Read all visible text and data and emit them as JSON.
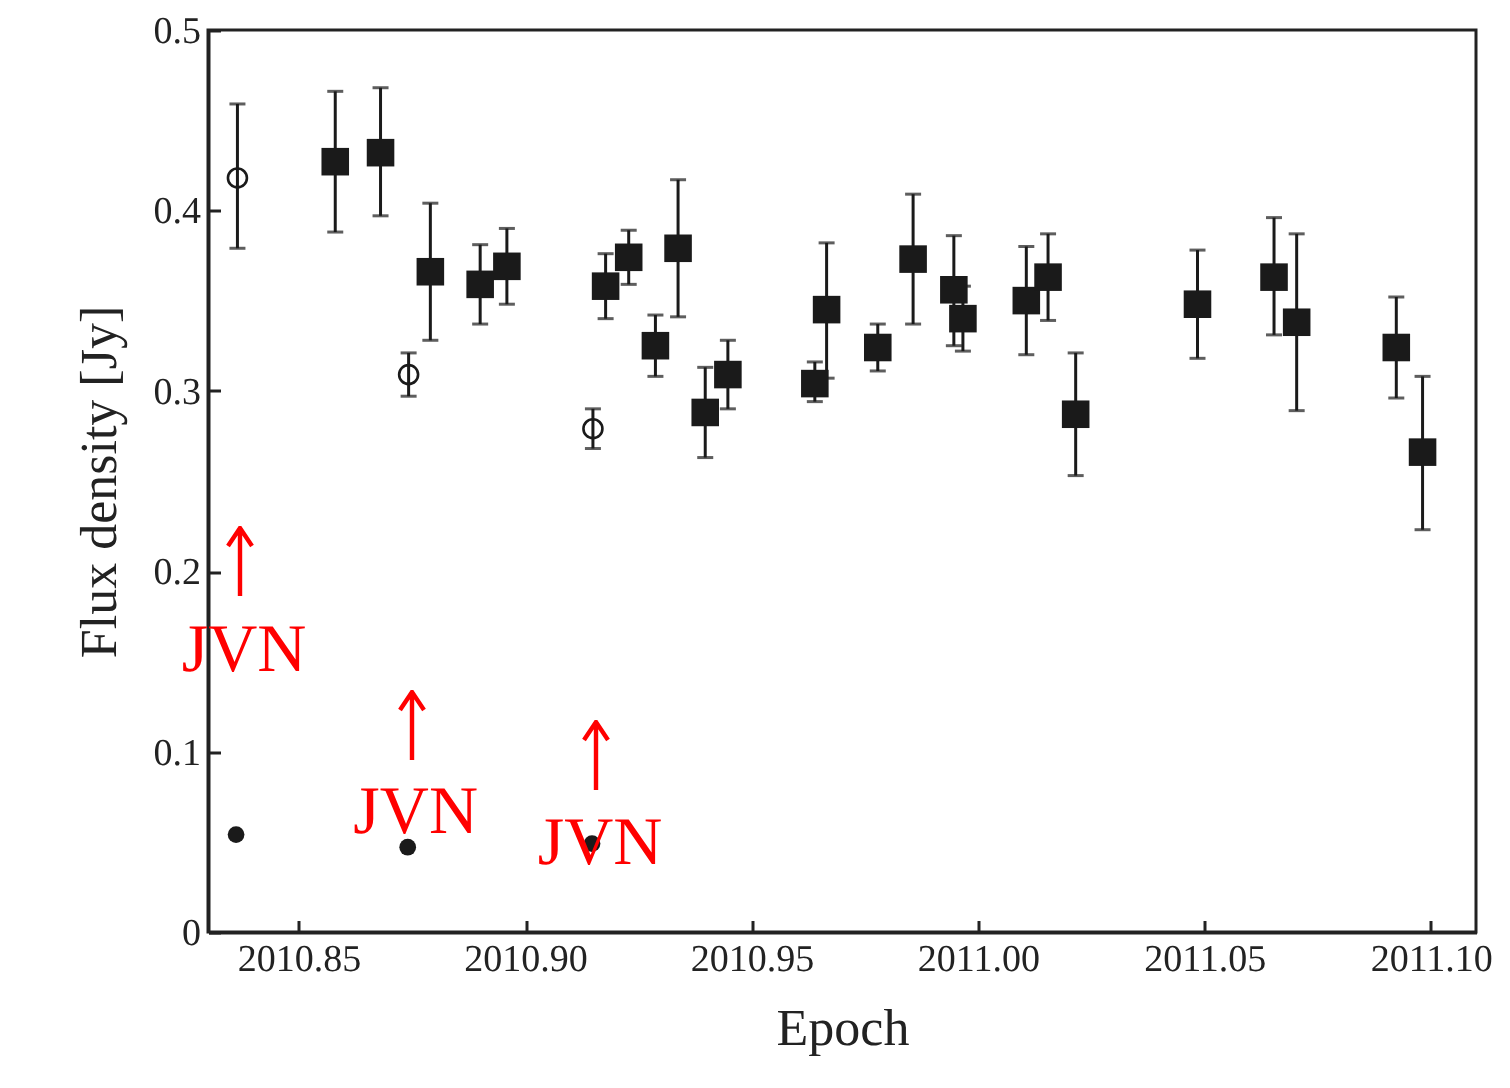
{
  "chart_data": {
    "type": "scatter",
    "xlabel": "Epoch",
    "ylabel": "Flux density [Jy]",
    "xlim": [
      2010.83,
      2011.11
    ],
    "ylim": [
      0,
      0.5
    ],
    "xticks": [
      {
        "value": 2010.85,
        "label": "2010.85"
      },
      {
        "value": 2010.9,
        "label": "2010.90"
      },
      {
        "value": 2010.95,
        "label": "2010.95"
      },
      {
        "value": 2011.0,
        "label": "2011.00"
      },
      {
        "value": 2011.05,
        "label": "2011.05"
      },
      {
        "value": 2011.1,
        "label": "2011.10"
      }
    ],
    "yticks": [
      0,
      0.1,
      0.2,
      0.3,
      0.4,
      0.5
    ],
    "series": [
      {
        "color": "#1a1a1a",
        "marker": "circle",
        "x": [
          2010.8365,
          2010.8743,
          2010.915
        ],
        "values": [
          0.418,
          0.309,
          0.279
        ],
        "errors": [
          [
            0.379,
            0.459
          ],
          [
            0.297,
            0.321
          ],
          [
            0.268,
            0.29
          ]
        ]
      },
      {
        "color": "#1a1a1a",
        "marker": "square",
        "x": [
          2010.8581,
          2010.8681,
          2010.8791,
          2010.8901,
          2010.896,
          2010.9178,
          2010.9229,
          2010.9288,
          2010.9338,
          2010.9398,
          2010.9448,
          2010.964,
          2010.9666,
          2010.9779,
          2010.9857,
          2010.9947,
          2010.9967,
          2011.0107,
          2011.0155,
          2011.0216,
          2011.0485,
          2011.0654,
          2011.0704,
          2011.0924,
          2011.0982
        ],
        "values": [
          0.427,
          0.432,
          0.366,
          0.359,
          0.369,
          0.358,
          0.374,
          0.325,
          0.379,
          0.288,
          0.309,
          0.304,
          0.345,
          0.324,
          0.373,
          0.356,
          0.34,
          0.35,
          0.363,
          0.287,
          0.348,
          0.363,
          0.338,
          0.324,
          0.266
        ],
        "errors": [
          [
            0.388,
            0.466
          ],
          [
            0.397,
            0.468
          ],
          [
            0.328,
            0.404
          ],
          [
            0.337,
            0.381
          ],
          [
            0.348,
            0.39
          ],
          [
            0.34,
            0.376
          ],
          [
            0.359,
            0.389
          ],
          [
            0.308,
            0.342
          ],
          [
            0.341,
            0.417
          ],
          [
            0.263,
            0.313
          ],
          [
            0.29,
            0.328
          ],
          [
            0.294,
            0.316
          ],
          [
            0.307,
            0.382
          ],
          [
            0.311,
            0.337
          ],
          [
            0.337,
            0.409
          ],
          [
            0.325,
            0.386
          ],
          [
            0.322,
            0.358
          ],
          [
            0.32,
            0.38
          ],
          [
            0.339,
            0.387
          ],
          [
            0.253,
            0.321
          ],
          [
            0.318,
            0.378
          ],
          [
            0.331,
            0.396
          ],
          [
            0.289,
            0.387
          ],
          [
            0.296,
            0.352
          ],
          [
            0.223,
            0.308
          ]
        ]
      },
      {
        "color": "#1a1a1a",
        "marker": "circle",
        "x": [
          2010.8362,
          2010.8741,
          2010.9148
        ],
        "values": [
          0.054,
          0.047,
          0.049
        ]
      }
    ],
    "annotations": [
      {
        "text": "JVN",
        "x": 2010.8362,
        "y": 0.054
      },
      {
        "text": "JVN",
        "x": 2010.8741,
        "y": 0.047
      },
      {
        "text": "JVN",
        "x": 2010.9148,
        "y": 0.049
      }
    ]
  }
}
